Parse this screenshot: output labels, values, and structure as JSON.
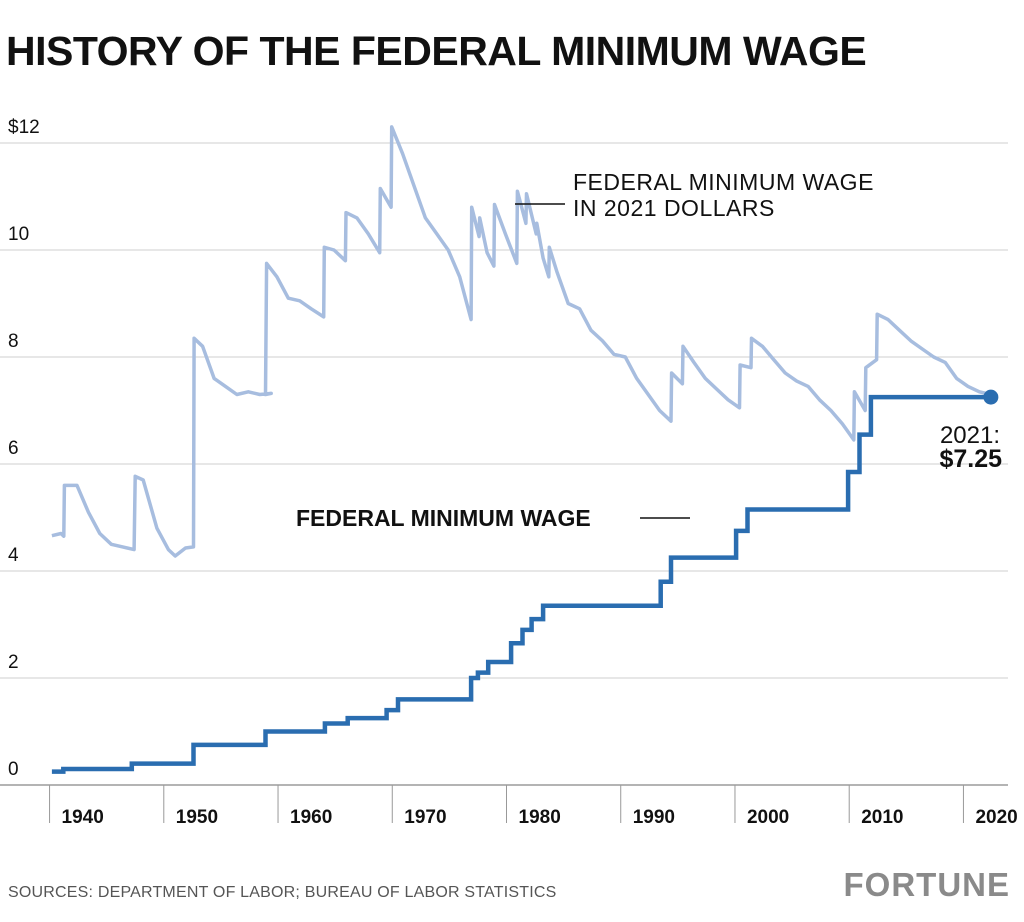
{
  "title": "HISTORY OF THE FEDERAL MINIMUM WAGE",
  "source": "SOURCES: DEPARTMENT OF LABOR; BUREAU OF LABOR STATISTICS",
  "brand": "FORTUNE",
  "colors": {
    "nominal": "#2a6db0",
    "real": "#a7bddf",
    "grid": "#cfcfcf",
    "text": "#111111"
  },
  "chart_data": {
    "type": "line",
    "title": "HISTORY OF THE FEDERAL MINIMUM WAGE",
    "xlim": [
      1937.5,
      2022.5
    ],
    "ylim": [
      0,
      12
    ],
    "ytick_labels": [
      "0",
      "2",
      "4",
      "6",
      "8",
      "10",
      "$12"
    ],
    "yticks": [
      0,
      2,
      4,
      6,
      8,
      10,
      12
    ],
    "xtick_labels": [
      "1940",
      "1950",
      "1960",
      "1970",
      "1980",
      "1990",
      "2000",
      "2010",
      "2020"
    ],
    "xticks": [
      1940,
      1950,
      1960,
      1970,
      1980,
      1990,
      2000,
      2010,
      2020
    ],
    "grid": "horizontal",
    "series": [
      {
        "name": "FEDERAL MINIMUM WAGE IN 2021 DOLLARS",
        "values": [
          [
            1938.8,
            4.66
          ],
          [
            1939.6,
            4.7
          ],
          [
            1939.85,
            4.65
          ],
          [
            1939.9,
            5.6
          ],
          [
            1941,
            5.6
          ],
          [
            1942,
            5.1
          ],
          [
            1943,
            4.7
          ],
          [
            1944,
            4.5
          ],
          [
            1945,
            4.45
          ],
          [
            1946,
            4.4
          ],
          [
            1946.1,
            5.77
          ],
          [
            1946.8,
            5.7
          ],
          [
            1948,
            4.8
          ],
          [
            1949,
            4.4
          ],
          [
            1949.6,
            4.28
          ],
          [
            1950.5,
            4.43
          ],
          [
            1951.2,
            4.45
          ],
          [
            1951.25,
            8.35
          ],
          [
            1952,
            8.2
          ],
          [
            1953,
            7.6
          ],
          [
            1954,
            7.45
          ],
          [
            1955,
            7.3
          ],
          [
            1956,
            7.35
          ],
          [
            1957,
            7.3
          ],
          [
            1958,
            7.32
          ],
          [
            1957.5,
            7.3
          ],
          [
            1957.6,
            9.75
          ],
          [
            1958.5,
            9.5
          ],
          [
            1959.5,
            9.1
          ],
          [
            1960.5,
            9.05
          ],
          [
            1961.5,
            8.9
          ],
          [
            1962.6,
            8.75
          ],
          [
            1962.65,
            10.05
          ],
          [
            1963.5,
            10
          ],
          [
            1964.5,
            9.8
          ],
          [
            1964.55,
            10.7
          ],
          [
            1965.5,
            10.6
          ],
          [
            1966.5,
            10.3
          ],
          [
            1967.5,
            9.95
          ],
          [
            1967.55,
            11.15
          ],
          [
            1968.5,
            10.8
          ],
          [
            1968.55,
            12.3
          ],
          [
            1969.5,
            11.8
          ],
          [
            1970.5,
            11.2
          ],
          [
            1971.5,
            10.6
          ],
          [
            1972.5,
            10.3
          ],
          [
            1973.5,
            10
          ],
          [
            1974.5,
            9.5
          ],
          [
            1975.5,
            8.7
          ],
          [
            1975.55,
            10.8
          ],
          [
            1976.2,
            10.25
          ],
          [
            1976.25,
            10.6
          ],
          [
            1976.9,
            9.95
          ],
          [
            1977.5,
            9.7
          ],
          [
            1977.55,
            10.85
          ],
          [
            1978.5,
            10.3
          ],
          [
            1979.5,
            9.75
          ],
          [
            1979.55,
            11.1
          ],
          [
            1980.3,
            10.5
          ],
          [
            1980.35,
            11.05
          ],
          [
            1981.2,
            10.3
          ],
          [
            1981.25,
            10.5
          ],
          [
            1981.8,
            9.85
          ],
          [
            1982.3,
            9.5
          ],
          [
            1982.35,
            10.05
          ],
          [
            1983,
            9.6
          ],
          [
            1984,
            9
          ],
          [
            1985,
            8.9
          ],
          [
            1986,
            8.5
          ],
          [
            1987,
            8.3
          ],
          [
            1988,
            8.05
          ],
          [
            1989,
            8.0
          ],
          [
            1990,
            7.6
          ],
          [
            1991,
            7.3
          ],
          [
            1992,
            7.0
          ],
          [
            1993,
            6.8
          ],
          [
            1993.05,
            7.7
          ],
          [
            1994,
            7.5
          ],
          [
            1994.05,
            8.2
          ],
          [
            1995,
            7.9
          ],
          [
            1996,
            7.6
          ],
          [
            1997,
            7.4
          ],
          [
            1998,
            7.2
          ],
          [
            1999,
            7.05
          ],
          [
            1999.05,
            7.85
          ],
          [
            2000,
            7.8
          ],
          [
            2000.05,
            8.35
          ],
          [
            2001,
            8.2
          ],
          [
            2002,
            7.95
          ],
          [
            2003,
            7.7
          ],
          [
            2004,
            7.55
          ],
          [
            2005,
            7.45
          ],
          [
            2006,
            7.2
          ],
          [
            2007,
            7.0
          ],
          [
            2008,
            6.75
          ],
          [
            2009,
            6.45
          ],
          [
            2009.05,
            7.35
          ],
          [
            2010,
            7.0
          ],
          [
            2010.05,
            7.8
          ],
          [
            2011,
            7.95
          ],
          [
            2011.05,
            8.8
          ],
          [
            2012,
            8.7
          ],
          [
            2013,
            8.5
          ],
          [
            2014,
            8.3
          ],
          [
            2015,
            8.15
          ],
          [
            2016,
            8.0
          ],
          [
            2017,
            7.9
          ],
          [
            2018,
            7.6
          ],
          [
            2019,
            7.45
          ],
          [
            2020,
            7.35
          ],
          [
            2021,
            7.3
          ]
        ]
      },
      {
        "name": "FEDERAL MINIMUM WAGE",
        "values": [
          [
            1938.8,
            0.25
          ],
          [
            1939.8,
            0.25
          ],
          [
            1939.8,
            0.3
          ],
          [
            1945.8,
            0.3
          ],
          [
            1945.8,
            0.4
          ],
          [
            1951.2,
            0.4
          ],
          [
            1951.2,
            0.75
          ],
          [
            1957.5,
            0.75
          ],
          [
            1957.5,
            1.0
          ],
          [
            1962.7,
            1.0
          ],
          [
            1962.7,
            1.15
          ],
          [
            1964.7,
            1.15
          ],
          [
            1964.7,
            1.25
          ],
          [
            1968.1,
            1.25
          ],
          [
            1968.1,
            1.4
          ],
          [
            1969.1,
            1.4
          ],
          [
            1969.1,
            1.6
          ],
          [
            1975.5,
            1.6
          ],
          [
            1975.5,
            2.0
          ],
          [
            1976.1,
            2.0
          ],
          [
            1976.1,
            2.1
          ],
          [
            1977,
            2.1
          ],
          [
            1977,
            2.3
          ],
          [
            1979,
            2.3
          ],
          [
            1979,
            2.65
          ],
          [
            1980,
            2.65
          ],
          [
            1980,
            2.9
          ],
          [
            1980.8,
            2.9
          ],
          [
            1980.8,
            3.1
          ],
          [
            1981.8,
            3.1
          ],
          [
            1981.8,
            3.35
          ],
          [
            1992.1,
            3.35
          ],
          [
            1992.1,
            3.8
          ],
          [
            1993,
            3.8
          ],
          [
            1993,
            4.25
          ],
          [
            1998.7,
            4.25
          ],
          [
            1998.7,
            4.75
          ],
          [
            1999.7,
            4.75
          ],
          [
            1999.7,
            5.15
          ],
          [
            2008.5,
            5.15
          ],
          [
            2008.5,
            5.85
          ],
          [
            2009.5,
            5.85
          ],
          [
            2009.5,
            6.55
          ],
          [
            2010.5,
            6.55
          ],
          [
            2010.5,
            7.25
          ],
          [
            2021,
            7.25
          ]
        ]
      }
    ],
    "annotations": [
      {
        "line1": "FEDERAL MINIMUM WAGE",
        "line2": "IN 2021 DOLLARS"
      },
      {
        "text": "FEDERAL MINIMUM WAGE"
      },
      {
        "line1": "2021:",
        "line2": "$7.25"
      }
    ]
  }
}
